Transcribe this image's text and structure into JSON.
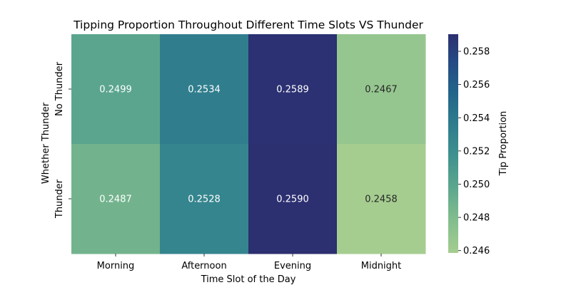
{
  "chart_data": {
    "type": "heatmap",
    "title": "Tipping Proportion Throughout Different Time Slots VS Thunder",
    "xlabel": "Time Slot of the Day",
    "ylabel": "Whether Thunder",
    "x_categories": [
      "Morning",
      "Afternoon",
      "Evening",
      "Midnight"
    ],
    "y_categories": [
      "No Thunder",
      "Thunder"
    ],
    "values": [
      [
        0.2499,
        0.2534,
        0.2589,
        0.2467
      ],
      [
        0.2487,
        0.2528,
        0.259,
        0.2458
      ]
    ],
    "cell_labels": [
      [
        "0.2499",
        "0.2534",
        "0.2589",
        "0.2467"
      ],
      [
        "0.2487",
        "0.2528",
        "0.2590",
        "0.2458"
      ]
    ],
    "colorbar": {
      "label": "Tip Proportion",
      "range": [
        0.24586,
        0.25903
      ],
      "ticks": [
        0.246,
        0.248,
        0.25,
        0.252,
        0.254,
        0.256,
        0.258
      ],
      "tick_labels": [
        "0.246",
        "0.248",
        "0.250",
        "0.252",
        "0.254",
        "0.256",
        "0.258"
      ]
    },
    "colormap": "crest",
    "legend": "colorbar-right",
    "grid": false
  }
}
